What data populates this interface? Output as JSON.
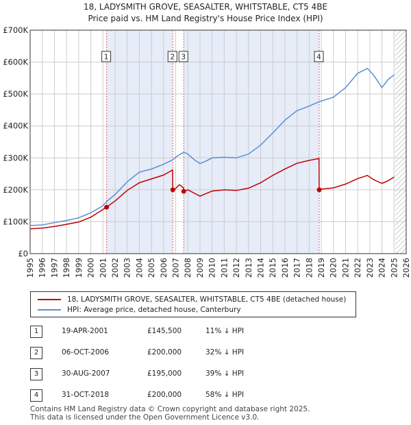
{
  "title_line1": "18, LADYSMITH GROVE, SEASALTER, WHITSTABLE, CT5 4BE",
  "title_line2": "Price paid vs. HM Land Registry's House Price Index (HPI)",
  "colors": {
    "price_paid": "#c00000",
    "hpi": "#5b8fd0",
    "shade": "#e6ecf8",
    "grid": "#cccccc"
  },
  "legend": {
    "price_paid": "18, LADYSMITH GROVE, SEASALTER, WHITSTABLE, CT5 4BE (detached house)",
    "hpi": "HPI: Average price, detached house, Canterbury"
  },
  "sales": [
    {
      "id": "1",
      "date": "19-APR-2001",
      "price": "£145,500",
      "hpi_diff": "11% ↓ HPI"
    },
    {
      "id": "2",
      "date": "06-OCT-2006",
      "price": "£200,000",
      "hpi_diff": "32% ↓ HPI"
    },
    {
      "id": "3",
      "date": "30-AUG-2007",
      "price": "£195,000",
      "hpi_diff": "39% ↓ HPI"
    },
    {
      "id": "4",
      "date": "31-OCT-2018",
      "price": "£200,000",
      "hpi_diff": "58% ↓ HPI"
    }
  ],
  "footer_line1": "Contains HM Land Registry data © Crown copyright and database right 2025.",
  "footer_line2": "This data is licensed under the Open Government Licence v3.0.",
  "chart_data": {
    "type": "line",
    "title": "18, LADYSMITH GROVE, SEASALTER, WHITSTABLE, CT5 4BE",
    "subtitle": "Price paid vs. HM Land Registry's House Price Index (HPI)",
    "xlim": [
      1995,
      2026
    ],
    "ylim": [
      0,
      700000
    ],
    "x_ticks": [
      "1995",
      "1996",
      "1997",
      "1998",
      "1999",
      "2000",
      "2001",
      "2002",
      "2003",
      "2004",
      "2005",
      "2006",
      "2007",
      "2008",
      "2009",
      "2010",
      "2011",
      "2012",
      "2013",
      "2014",
      "2015",
      "2016",
      "2017",
      "2018",
      "2019",
      "2020",
      "2021",
      "2022",
      "2023",
      "2024",
      "2025",
      "2026"
    ],
    "y_ticks": [
      {
        "value": 0,
        "label": "£0"
      },
      {
        "value": 100000,
        "label": "£100K"
      },
      {
        "value": 200000,
        "label": "£200K"
      },
      {
        "value": 300000,
        "label": "£300K"
      },
      {
        "value": 400000,
        "label": "£400K"
      },
      {
        "value": 500000,
        "label": "£500K"
      },
      {
        "value": 600000,
        "label": "£600K"
      },
      {
        "value": 700000,
        "label": "£700K"
      }
    ],
    "grid": true,
    "shaded_ranges": [
      [
        2001.3,
        2006.76
      ],
      [
        2007.66,
        2018.83
      ]
    ],
    "future_hatch_from": 2025.1,
    "series": [
      {
        "name": "HPI: Average price, detached house, Canterbury",
        "points": [
          [
            1995.0,
            88000
          ],
          [
            1996.0,
            90000
          ],
          [
            1997.0,
            97000
          ],
          [
            1998.0,
            104000
          ],
          [
            1999.0,
            112000
          ],
          [
            2000.0,
            128000
          ],
          [
            2001.0,
            150000
          ],
          [
            2001.3,
            163500
          ],
          [
            2002.0,
            185000
          ],
          [
            2003.0,
            225000
          ],
          [
            2004.0,
            255000
          ],
          [
            2005.0,
            265000
          ],
          [
            2006.0,
            280000
          ],
          [
            2006.76,
            294000
          ],
          [
            2007.0,
            302000
          ],
          [
            2007.66,
            318000
          ],
          [
            2008.0,
            312000
          ],
          [
            2008.5,
            295000
          ],
          [
            2009.0,
            282000
          ],
          [
            2009.5,
            290000
          ],
          [
            2010.0,
            300000
          ],
          [
            2011.0,
            302000
          ],
          [
            2012.0,
            300000
          ],
          [
            2013.0,
            312000
          ],
          [
            2014.0,
            340000
          ],
          [
            2015.0,
            378000
          ],
          [
            2016.0,
            418000
          ],
          [
            2017.0,
            448000
          ],
          [
            2018.0,
            462000
          ],
          [
            2018.83,
            476000
          ],
          [
            2019.0,
            478000
          ],
          [
            2020.0,
            490000
          ],
          [
            2021.0,
            520000
          ],
          [
            2022.0,
            565000
          ],
          [
            2022.8,
            580000
          ],
          [
            2023.3,
            560000
          ],
          [
            2024.0,
            520000
          ],
          [
            2024.5,
            545000
          ],
          [
            2025.0,
            560000
          ]
        ]
      },
      {
        "name": "18, LADYSMITH GROVE, SEASALTER, WHITSTABLE, CT5 4BE (detached house)",
        "points": [
          [
            1995.0,
            78000
          ],
          [
            1996.0,
            80000
          ],
          [
            1997.0,
            85000
          ],
          [
            1998.0,
            92000
          ],
          [
            1999.0,
            99000
          ],
          [
            2000.0,
            114000
          ],
          [
            2001.3,
            145500
          ],
          [
            2002.0,
            165000
          ],
          [
            2003.0,
            198000
          ],
          [
            2004.0,
            222000
          ],
          [
            2005.0,
            234000
          ],
          [
            2006.0,
            246000
          ],
          [
            2006.74,
            262000
          ],
          [
            2006.76,
            200000
          ],
          [
            2007.0,
            204000
          ],
          [
            2007.3,
            216000
          ],
          [
            2007.64,
            206000
          ],
          [
            2007.66,
            195000
          ],
          [
            2008.0,
            200000
          ],
          [
            2008.5,
            190000
          ],
          [
            2009.0,
            180000
          ],
          [
            2009.5,
            188000
          ],
          [
            2010.0,
            196000
          ],
          [
            2011.0,
            200000
          ],
          [
            2012.0,
            198000
          ],
          [
            2013.0,
            205000
          ],
          [
            2014.0,
            222000
          ],
          [
            2015.0,
            245000
          ],
          [
            2016.0,
            265000
          ],
          [
            2017.0,
            283000
          ],
          [
            2018.0,
            292000
          ],
          [
            2018.81,
            298000
          ],
          [
            2018.83,
            200000
          ],
          [
            2019.0,
            202000
          ],
          [
            2020.0,
            206000
          ],
          [
            2021.0,
            218000
          ],
          [
            2022.0,
            235000
          ],
          [
            2022.8,
            245000
          ],
          [
            2023.3,
            232000
          ],
          [
            2024.0,
            220000
          ],
          [
            2024.5,
            228000
          ],
          [
            2025.0,
            240000
          ]
        ]
      }
    ],
    "sale_markers": [
      {
        "label": "1",
        "x": 2001.3,
        "value": 145500
      },
      {
        "label": "2",
        "x": 2006.76,
        "value": 200000
      },
      {
        "label": "3",
        "x": 2007.66,
        "value": 195000
      },
      {
        "label": "4",
        "x": 2018.83,
        "value": 200000
      }
    ]
  }
}
